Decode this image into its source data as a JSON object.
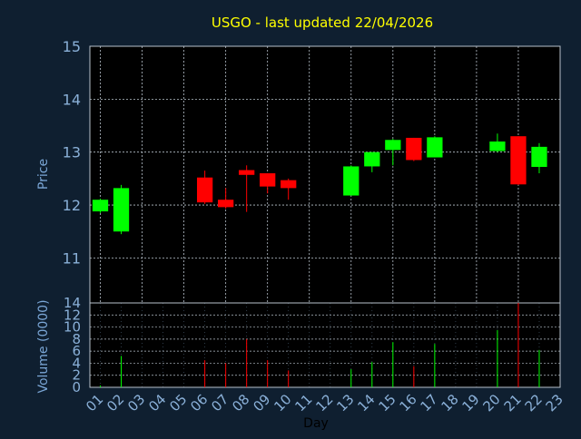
{
  "chart_data": {
    "type": "candlestick",
    "title": "USGO - last updated 22/04/2026",
    "xlabel": "Day",
    "x_ticks": [
      "01",
      "02",
      "03",
      "04",
      "05",
      "06",
      "07",
      "08",
      "09",
      "10",
      "11",
      "12",
      "13",
      "14",
      "15",
      "16",
      "17",
      "18",
      "19",
      "20",
      "21",
      "22",
      "23"
    ],
    "price_panel": {
      "ylabel": "Price",
      "ylim": [
        10.15,
        15
      ],
      "y_ticks": [
        11,
        12,
        13,
        14,
        15
      ],
      "grid": true,
      "candles": [
        {
          "day": 1,
          "open": 11.88,
          "high": 12.12,
          "low": 11.85,
          "close": 12.1
        },
        {
          "day": 2,
          "open": 11.5,
          "high": 12.38,
          "low": 11.45,
          "close": 12.32
        },
        {
          "day": 6,
          "open": 12.52,
          "high": 12.65,
          "low": 12.02,
          "close": 12.05
        },
        {
          "day": 7,
          "open": 12.1,
          "high": 12.32,
          "low": 11.93,
          "close": 11.96
        },
        {
          "day": 8,
          "open": 12.66,
          "high": 12.75,
          "low": 11.87,
          "close": 12.57
        },
        {
          "day": 9,
          "open": 12.6,
          "high": 12.6,
          "low": 12.22,
          "close": 12.35
        },
        {
          "day": 10,
          "open": 12.47,
          "high": 12.5,
          "low": 12.1,
          "close": 12.32
        },
        {
          "day": 13,
          "open": 12.18,
          "high": 12.75,
          "low": 12.18,
          "close": 12.73
        },
        {
          "day": 14,
          "open": 12.73,
          "high": 13.0,
          "low": 12.62,
          "close": 13.0
        },
        {
          "day": 15,
          "open": 13.04,
          "high": 13.25,
          "low": 12.75,
          "close": 13.23
        },
        {
          "day": 16,
          "open": 13.27,
          "high": 13.27,
          "low": 12.83,
          "close": 12.85
        },
        {
          "day": 17,
          "open": 12.9,
          "high": 13.3,
          "low": 12.9,
          "close": 13.28
        },
        {
          "day": 20,
          "open": 13.02,
          "high": 13.35,
          "low": 13.0,
          "close": 13.2
        },
        {
          "day": 21,
          "open": 13.3,
          "high": 13.3,
          "low": 12.38,
          "close": 12.39
        },
        {
          "day": 22,
          "open": 12.72,
          "high": 13.17,
          "low": 12.6,
          "close": 13.1
        }
      ]
    },
    "volume_panel": {
      "ylabel": "Volume (0000)",
      "ylim": [
        0,
        14
      ],
      "y_ticks": [
        0,
        2,
        4,
        6,
        8,
        10,
        12,
        14
      ],
      "bars": [
        {
          "day": 1,
          "value": 0.3,
          "up": true
        },
        {
          "day": 2,
          "value": 5.2,
          "up": true
        },
        {
          "day": 6,
          "value": 4.5,
          "up": false
        },
        {
          "day": 7,
          "value": 4.0,
          "up": false
        },
        {
          "day": 8,
          "value": 8.0,
          "up": false
        },
        {
          "day": 9,
          "value": 4.5,
          "up": false
        },
        {
          "day": 10,
          "value": 2.8,
          "up": false
        },
        {
          "day": 13,
          "value": 3.0,
          "up": true
        },
        {
          "day": 14,
          "value": 4.2,
          "up": true
        },
        {
          "day": 15,
          "value": 7.5,
          "up": true
        },
        {
          "day": 16,
          "value": 3.5,
          "up": false
        },
        {
          "day": 17,
          "value": 7.2,
          "up": true
        },
        {
          "day": 20,
          "value": 9.5,
          "up": true
        },
        {
          "day": 21,
          "value": 14.0,
          "up": false
        },
        {
          "day": 22,
          "value": 6.2,
          "up": true
        }
      ]
    },
    "colors": {
      "background": "#0f1f30",
      "up": "#00ff00",
      "down": "#ff0000",
      "grid": "#b8c2cc",
      "title": "#ffff00",
      "axis_text": "#7aa6d6",
      "tick_text": "#8ab0d8",
      "xlabel_text": "#000000"
    }
  }
}
